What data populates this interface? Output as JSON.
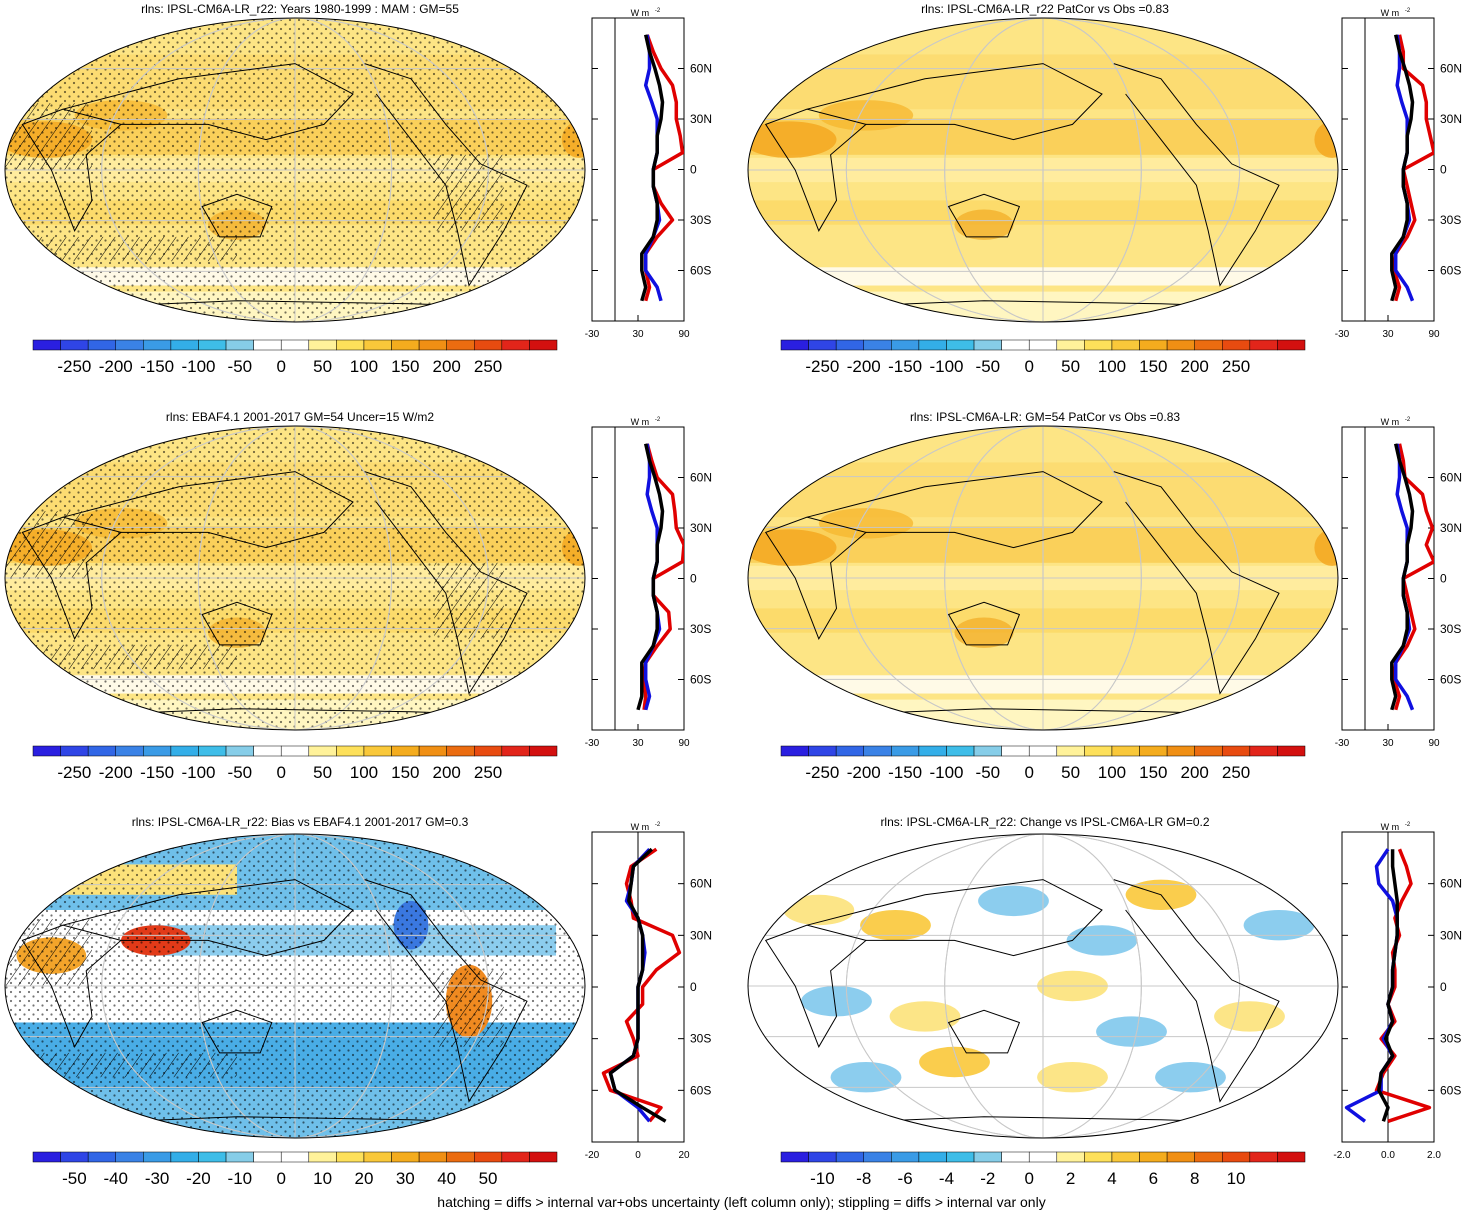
{
  "footer": "hatching = diffs > internal var+obs uncertainty (left column only); stippling = diffs > internal var only",
  "units_label": "W m",
  "units_exp": "-2",
  "lat_ticks": [
    "60N",
    "30N",
    "0",
    "30S",
    "60S"
  ],
  "lat_values": [
    60,
    30,
    0,
    -30,
    -60
  ],
  "palette": [
    "#2a1fe0",
    "#2f45e6",
    "#3166e6",
    "#3a82e6",
    "#3a9be6",
    "#33aee8",
    "#3ebde8",
    "#86cde8",
    "#ffffff",
    "#ffffff",
    "#fff29a",
    "#fde05a",
    "#f9c83a",
    "#f4ac1e",
    "#f08f14",
    "#eb6c10",
    "#e84b10",
    "#e2251a",
    "#d3100f"
  ],
  "chart_data": [
    {
      "type": "heatmap",
      "title": "rlns: IPSL-CM6A-LR_r22: Years 1980-1999 : MAM : GM=55",
      "global_mean": 55,
      "colorbar": {
        "ticks": [
          "-250",
          "-200",
          "-150",
          "-100",
          "-50",
          "0",
          "50",
          "100",
          "150",
          "200",
          "250"
        ],
        "range": [
          -250,
          250
        ]
      },
      "field": "absolute",
      "hatching": true,
      "stippling": true,
      "zonal_profile": {
        "xlim": [
          -30,
          90
        ],
        "xticks": [
          "-30",
          "30",
          "90"
        ],
        "lat": [
          80,
          70,
          60,
          50,
          40,
          30,
          20,
          10,
          0,
          -10,
          -20,
          -30,
          -40,
          -50,
          -60,
          -70,
          -78
        ],
        "series": [
          {
            "name": "",
            "color": "#e00000",
            "values": [
              42,
              50,
              60,
              75,
              80,
              80,
              85,
              88,
              50,
              50,
              60,
              75,
              55,
              40,
              40,
              45,
              40
            ]
          },
          {
            "name": "",
            "color": "#1010e0",
            "values": [
              42,
              45,
              45,
              40,
              48,
              55,
              55,
              55,
              50,
              50,
              55,
              58,
              50,
              40,
              40,
              55,
              60
            ]
          },
          {
            "name": "",
            "color": "#000000",
            "values": [
              40,
              45,
              52,
              58,
              62,
              60,
              55,
              55,
              50,
              50,
              55,
              55,
              50,
              35,
              35,
              40,
              35
            ]
          }
        ]
      }
    },
    {
      "type": "heatmap",
      "title": "rlns: IPSL-CM6A-LR_r22 PatCor vs Obs =0.83",
      "field": "absolute",
      "colorbar": {
        "ticks": [
          "-250",
          "-200",
          "-150",
          "-100",
          "-50",
          "0",
          "50",
          "100",
          "150",
          "200",
          "250"
        ],
        "range": [
          -250,
          250
        ]
      },
      "hatching": false,
      "stippling": false,
      "zonal_profile": {
        "xlim": [
          -30,
          90
        ],
        "xticks": [
          "-30",
          "30",
          "90"
        ],
        "lat": [
          80,
          70,
          60,
          50,
          40,
          30,
          20,
          10,
          0,
          -10,
          -20,
          -30,
          -40,
          -50,
          -60,
          -70,
          -78
        ],
        "series": [
          {
            "name": "",
            "color": "#e00000",
            "values": [
              45,
              50,
              50,
              75,
              80,
              80,
              85,
              90,
              50,
              55,
              60,
              65,
              55,
              40,
              38,
              45,
              40
            ]
          },
          {
            "name": "",
            "color": "#1010e0",
            "values": [
              42,
              45,
              45,
              42,
              48,
              55,
              55,
              55,
              50,
              50,
              55,
              58,
              50,
              40,
              40,
              55,
              62
            ]
          },
          {
            "name": "",
            "color": "#000000",
            "values": [
              40,
              45,
              52,
              58,
              62,
              60,
              55,
              55,
              50,
              50,
              55,
              55,
              50,
              35,
              35,
              40,
              35
            ]
          }
        ]
      }
    },
    {
      "type": "heatmap",
      "title": "rlns: EBAF4.1 2001-2017 GM=54 Uncer=15 W/m2",
      "global_mean": 54,
      "uncertainty": "15 W/m2",
      "field": "absolute",
      "colorbar": {
        "ticks": [
          "-250",
          "-200",
          "-150",
          "-100",
          "-50",
          "0",
          "50",
          "100",
          "150",
          "200",
          "250"
        ],
        "range": [
          -250,
          250
        ]
      },
      "hatching": true,
      "stippling": true,
      "zonal_profile": {
        "xlim": [
          -30,
          90
        ],
        "xticks": [
          "-30",
          "30",
          "90"
        ],
        "lat": [
          80,
          70,
          60,
          50,
          40,
          30,
          20,
          10,
          0,
          -10,
          -20,
          -30,
          -40,
          -50,
          -60,
          -70,
          -78
        ],
        "series": [
          {
            "name": "",
            "color": "#e00000",
            "values": [
              42,
              48,
              55,
              75,
              78,
              80,
              90,
              88,
              50,
              50,
              70,
              72,
              55,
              40,
              38,
              40,
              38
            ]
          },
          {
            "name": "",
            "color": "#1010e0",
            "values": [
              42,
              45,
              45,
              42,
              48,
              55,
              55,
              55,
              50,
              50,
              55,
              58,
              50,
              40,
              40,
              45,
              40
            ]
          },
          {
            "name": "",
            "color": "#000000",
            "values": [
              40,
              45,
              52,
              58,
              62,
              60,
              55,
              55,
              50,
              50,
              55,
              55,
              50,
              35,
              35,
              35,
              30
            ]
          }
        ]
      }
    },
    {
      "type": "heatmap",
      "title": "rlns: IPSL-CM6A-LR: GM=54 PatCor vs Obs =0.83",
      "global_mean": 54,
      "field": "absolute",
      "colorbar": {
        "ticks": [
          "-250",
          "-200",
          "-150",
          "-100",
          "-50",
          "0",
          "50",
          "100",
          "150",
          "200",
          "250"
        ],
        "range": [
          -250,
          250
        ]
      },
      "hatching": false,
      "stippling": false,
      "zonal_profile": {
        "xlim": [
          -30,
          90
        ],
        "xticks": [
          "-30",
          "30",
          "90"
        ],
        "lat": [
          80,
          70,
          60,
          50,
          40,
          30,
          20,
          10,
          0,
          -10,
          -20,
          -30,
          -40,
          -50,
          -60,
          -70,
          -78
        ],
        "series": [
          {
            "name": "",
            "color": "#e00000",
            "values": [
              45,
              50,
              52,
              75,
              80,
              88,
              80,
              90,
              50,
              55,
              60,
              65,
              55,
              40,
              38,
              45,
              40
            ]
          },
          {
            "name": "",
            "color": "#1010e0",
            "values": [
              42,
              45,
              45,
              42,
              48,
              55,
              55,
              55,
              50,
              50,
              55,
              58,
              50,
              40,
              40,
              55,
              62
            ]
          },
          {
            "name": "",
            "color": "#000000",
            "values": [
              40,
              45,
              52,
              58,
              62,
              60,
              55,
              55,
              50,
              50,
              55,
              55,
              50,
              35,
              35,
              40,
              35
            ]
          }
        ]
      }
    },
    {
      "type": "heatmap",
      "title": "rlns: IPSL-CM6A-LR_r22: Bias vs EBAF4.1 2001-2017 GM=0.3",
      "global_mean": 0.3,
      "field": "bias",
      "colorbar": {
        "ticks": [
          "-50",
          "-40",
          "-30",
          "-20",
          "-10",
          "0",
          "10",
          "20",
          "30",
          "40",
          "50"
        ],
        "range": [
          -50,
          50
        ]
      },
      "hatching": true,
      "stippling": true,
      "zonal_profile": {
        "xlim": [
          -20,
          20
        ],
        "xticks": [
          "-20",
          "0",
          "20"
        ],
        "lat": [
          80,
          70,
          60,
          50,
          40,
          30,
          20,
          10,
          0,
          -10,
          -20,
          -30,
          -40,
          -50,
          -60,
          -70,
          -78
        ],
        "series": [
          {
            "name": "",
            "color": "#e00000",
            "values": [
              8,
              -3,
              -5,
              -3,
              -2,
              15,
              18,
              8,
              2,
              2,
              -5,
              -2,
              0,
              -15,
              -12,
              10,
              5
            ]
          },
          {
            "name": "",
            "color": "#1010e0",
            "values": [
              5,
              -2,
              -3,
              -5,
              0,
              2,
              3,
              2,
              0,
              0,
              0,
              0,
              -2,
              -12,
              -10,
              0,
              5
            ]
          },
          {
            "name": "",
            "color": "#000000",
            "values": [
              6,
              -2,
              -3,
              -4,
              0,
              2,
              2,
              2,
              0,
              0,
              0,
              0,
              -2,
              -12,
              -10,
              2,
              12
            ]
          }
        ]
      }
    },
    {
      "type": "heatmap",
      "title": "rlns: IPSL-CM6A-LR_r22: Change vs IPSL-CM6A-LR GM=0.2",
      "global_mean": 0.2,
      "field": "change",
      "colorbar": {
        "ticks": [
          "-10",
          "-8",
          "-6",
          "-4",
          "-2",
          "0",
          "2",
          "4",
          "6",
          "8",
          "10"
        ],
        "range": [
          -10,
          10
        ]
      },
      "hatching": false,
      "stippling": false,
      "zonal_profile": {
        "xlim": [
          -2.0,
          2.0
        ],
        "xticks": [
          "-2.0",
          "0.0",
          "2.0"
        ],
        "lat": [
          80,
          70,
          60,
          50,
          40,
          30,
          20,
          10,
          0,
          -10,
          -20,
          -30,
          -40,
          -50,
          -60,
          -70,
          -78
        ],
        "series": [
          {
            "name": "",
            "color": "#e00000",
            "values": [
              0.5,
              0.8,
              1.0,
              0.6,
              0.3,
              0.5,
              0.2,
              0.3,
              0.3,
              0.0,
              0.3,
              -0.3,
              0.3,
              -0.2,
              -0.5,
              1.8,
              0.0
            ]
          },
          {
            "name": "",
            "color": "#1010e0",
            "values": [
              0.0,
              -0.5,
              -0.4,
              0.2,
              0.4,
              0.4,
              0.3,
              0.2,
              0.2,
              0.0,
              0.2,
              -0.2,
              0.2,
              -0.3,
              -0.3,
              -1.8,
              -1.0
            ]
          },
          {
            "name": "",
            "color": "#000000",
            "values": [
              0.2,
              0.2,
              0.3,
              0.4,
              0.4,
              0.4,
              0.3,
              0.2,
              0.2,
              0.0,
              0.2,
              -0.1,
              0.2,
              -0.3,
              -0.4,
              0.0,
              -0.2
            ]
          }
        ]
      }
    }
  ]
}
